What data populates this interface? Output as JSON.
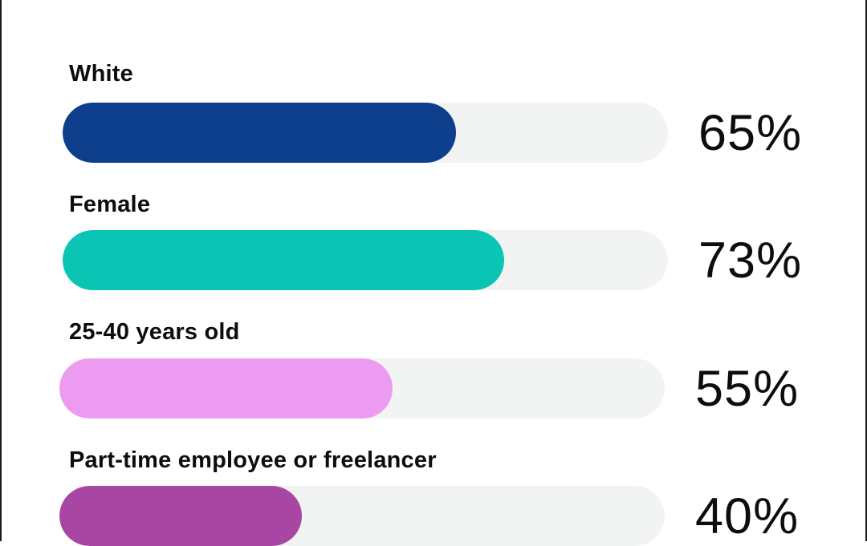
{
  "chart_data": {
    "type": "bar",
    "orientation": "horizontal",
    "categories": [
      "White",
      "Female",
      "25-40 years old",
      "Part-time employee or freelancer"
    ],
    "values": [
      65,
      73,
      55,
      40
    ],
    "value_labels": [
      "65%",
      "73%",
      "55%",
      "40%"
    ],
    "unit": "%",
    "xlim": [
      0,
      100
    ],
    "colors": [
      "#0d3f8c",
      "#0bc5b4",
      "#ec9bf0",
      "#a946a4"
    ],
    "track_color": "#f2f4f4",
    "grid": false,
    "legend": "none"
  }
}
